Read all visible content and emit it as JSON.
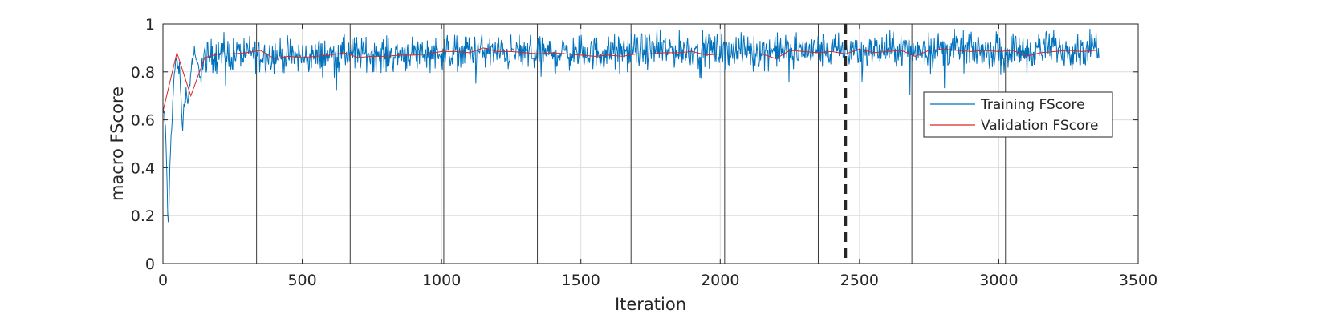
{
  "chart_data": {
    "type": "line",
    "xlabel": "Iteration",
    "ylabel": "macro FScore",
    "xlim": [
      0,
      3500
    ],
    "ylim": [
      0,
      1
    ],
    "x_ticks": [
      0,
      500,
      1000,
      1500,
      2000,
      2500,
      3000,
      3500
    ],
    "y_ticks": [
      0,
      0.2,
      0.4,
      0.6,
      0.8,
      1
    ],
    "grid": true,
    "legend_position": "upper-right (inside axes)",
    "epoch_boundaries": [
      336,
      672,
      1008,
      1344,
      1680,
      2016,
      2352,
      2688,
      3024
    ],
    "stop_marker_x": 2450,
    "series": [
      {
        "name": "Training FScore",
        "color": "#0072BD",
        "style": "solid",
        "description_points": {
          "x": [
            1,
            10,
            20,
            25,
            30,
            40,
            50,
            60,
            70,
            80,
            90,
            100,
            110,
            120,
            130,
            150,
            200,
            300,
            400,
            500,
            600,
            700,
            800,
            900,
            1000,
            1100,
            1200,
            1300,
            1400,
            1500,
            1600,
            1700,
            1800,
            1900,
            2000,
            2100,
            2200,
            2300,
            2400,
            2500,
            2600,
            2700,
            2800,
            2900,
            3000,
            3100,
            3200,
            3300,
            3360
          ],
          "y": [
            0.65,
            0.55,
            0.1,
            0.42,
            0.55,
            0.78,
            0.86,
            0.8,
            0.56,
            0.72,
            0.68,
            0.8,
            0.88,
            0.84,
            0.8,
            0.86,
            0.87,
            0.88,
            0.87,
            0.86,
            0.87,
            0.88,
            0.87,
            0.88,
            0.88,
            0.89,
            0.88,
            0.88,
            0.88,
            0.88,
            0.88,
            0.89,
            0.89,
            0.89,
            0.89,
            0.89,
            0.89,
            0.89,
            0.89,
            0.89,
            0.89,
            0.89,
            0.9,
            0.89,
            0.89,
            0.89,
            0.9,
            0.89,
            0.92
          ]
        },
        "noise_amplitude": 0.035
      },
      {
        "name": "Validation FScore",
        "color": "#D62728",
        "style": "solid",
        "x": [
          1,
          50,
          100,
          150,
          200,
          250,
          300,
          350,
          400,
          450,
          500,
          550,
          600,
          650,
          700,
          750,
          800,
          850,
          900,
          950,
          1000,
          1050,
          1100,
          1150,
          1200,
          1250,
          1300,
          1350,
          1400,
          1450,
          1500,
          1550,
          1600,
          1650,
          1700,
          1750,
          1800,
          1850,
          1900,
          1950,
          2000,
          2050,
          2100,
          2150,
          2200,
          2250,
          2300,
          2350,
          2400,
          2450,
          2500,
          2550,
          2600,
          2650,
          2700,
          2750,
          2800,
          2850,
          2900,
          2950,
          3000,
          3050,
          3100,
          3150,
          3200,
          3250,
          3300,
          3350
        ],
        "y": [
          0.64,
          0.88,
          0.7,
          0.86,
          0.875,
          0.875,
          0.88,
          0.89,
          0.855,
          0.865,
          0.86,
          0.865,
          0.87,
          0.88,
          0.86,
          0.865,
          0.865,
          0.87,
          0.87,
          0.875,
          0.885,
          0.885,
          0.88,
          0.9,
          0.885,
          0.885,
          0.88,
          0.875,
          0.88,
          0.875,
          0.87,
          0.865,
          0.87,
          0.865,
          0.875,
          0.875,
          0.88,
          0.88,
          0.885,
          0.87,
          0.875,
          0.875,
          0.875,
          0.875,
          0.855,
          0.89,
          0.885,
          0.88,
          0.885,
          0.875,
          0.895,
          0.88,
          0.885,
          0.89,
          0.865,
          0.89,
          0.895,
          0.89,
          0.885,
          0.89,
          0.885,
          0.89,
          0.865,
          0.88,
          0.885,
          0.89,
          0.885,
          0.89
        ]
      }
    ]
  }
}
